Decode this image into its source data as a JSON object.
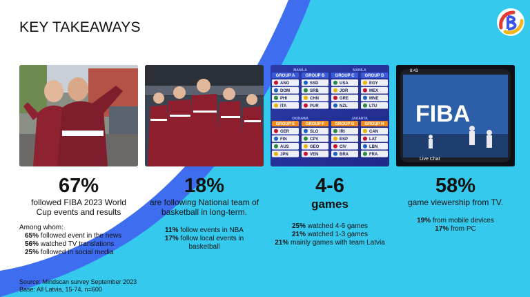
{
  "title": "KEY TAKEAWAYS",
  "colors": {
    "background_cyan": "#35c9ee",
    "shape_blue": "#3f6df0",
    "shape_white": "#ffffff"
  },
  "logo": {
    "icon": "brand-logo-icon"
  },
  "photos": [
    {
      "icon": "fans-photo"
    },
    {
      "icon": "latvia-team-photo"
    },
    {
      "icon": "world-cup-groups-photo"
    },
    {
      "icon": "phone-stream-photo"
    }
  ],
  "groups": {
    "top_left_label": "MANILA",
    "top_right_label": "MANILA",
    "bottom_left_label": "OKINAWA",
    "bottom_right_label": "JAKARTA",
    "list": [
      {
        "name": "GROUP A",
        "teams": [
          "ANG",
          "DOM",
          "PHI",
          "ITA"
        ]
      },
      {
        "name": "GROUP B",
        "teams": [
          "SSD",
          "SRB",
          "CHN",
          "PUR"
        ]
      },
      {
        "name": "GROUP C",
        "teams": [
          "USA",
          "JOR",
          "GRE",
          "NZL"
        ]
      },
      {
        "name": "GROUP D",
        "teams": [
          "EGY",
          "MEX",
          "MNE",
          "LTU"
        ]
      },
      {
        "name": "GROUP E",
        "teams": [
          "GER",
          "FIN",
          "AUS",
          "JPN"
        ]
      },
      {
        "name": "GROUP F",
        "teams": [
          "SLO",
          "CPV",
          "GEO",
          "VEN"
        ]
      },
      {
        "name": "GROUP G",
        "teams": [
          "IRI",
          "ESP",
          "CIV",
          "BRA"
        ]
      },
      {
        "name": "GROUP H",
        "teams": [
          "CAN",
          "LAT",
          "LBN",
          "FRA"
        ]
      }
    ]
  },
  "phone": {
    "time": "8:43",
    "brand": "FIBA",
    "live_chat": "Live Chat"
  },
  "stats": [
    {
      "value": "67%",
      "description_lines": [
        "followed FIBA 2023 World",
        "Cup events and results"
      ]
    },
    {
      "value": "18%",
      "description_lines": [
        "are following National team of",
        "basketball in long-term."
      ],
      "details": [
        {
          "bold": "11%",
          "text": " follow events in NBA"
        },
        {
          "bold": "17%",
          "text": " follow local events in"
        },
        {
          "bold": "",
          "text": "basketball"
        }
      ]
    },
    {
      "value": "4-6",
      "description_lines": [
        "games"
      ],
      "details": [
        {
          "bold": "25%",
          "text": " watched 4-6 games"
        },
        {
          "bold": "21%",
          "text": " watched 1-3 games"
        },
        {
          "bold": "21%",
          "text": " mainly games with team Latvia"
        }
      ]
    },
    {
      "value": "58%",
      "description_lines": [
        "game viewership from TV."
      ],
      "details": [
        {
          "bold": "19%",
          "text": " from mobile devices"
        },
        {
          "bold": "17%",
          "text": " from PC"
        }
      ]
    }
  ],
  "among": {
    "heading": "Among whom:",
    "rows": [
      {
        "bold": "65%",
        "text": " followed  event in the news"
      },
      {
        "bold": "56%",
        "text": " watched TV translations"
      },
      {
        "bold": "25%",
        "text": " followed in social media"
      }
    ]
  },
  "footer": {
    "source": "Source: Mindscan survey September 2023",
    "base": "Base: All Latvia, 15-74, n=600"
  }
}
